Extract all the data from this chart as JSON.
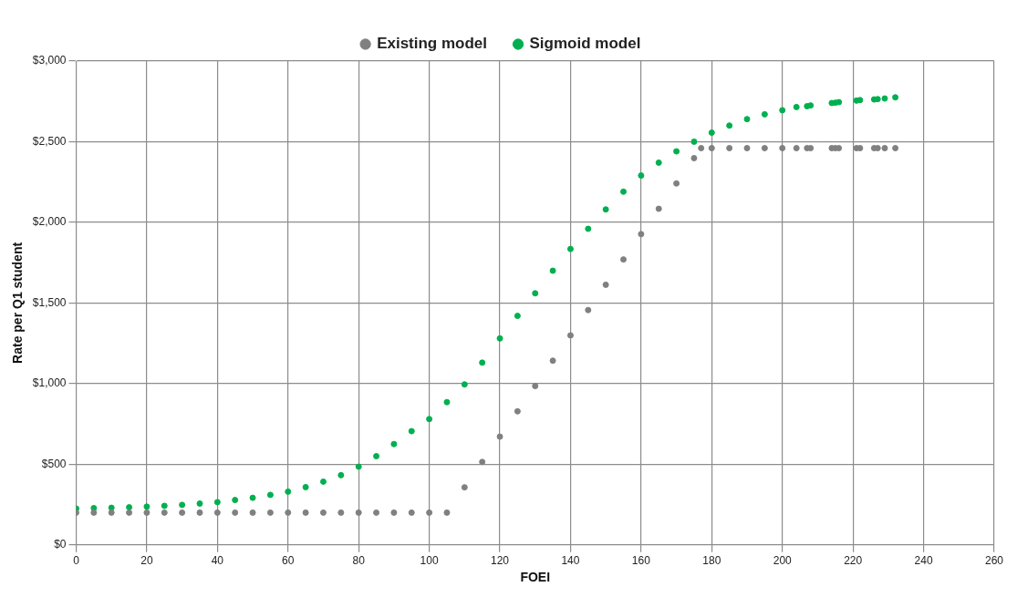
{
  "chart_data": {
    "type": "scatter",
    "xlabel": "FOEI",
    "ylabel": "Rate per Q1 student",
    "legend": "top",
    "grid": true,
    "marker": "circle",
    "xlim": [
      0,
      260
    ],
    "xticks": [
      0,
      20,
      40,
      60,
      80,
      100,
      120,
      140,
      160,
      180,
      200,
      220,
      240,
      260
    ],
    "ylim": [
      0,
      3000
    ],
    "yticks": [
      {
        "value": 0,
        "label": "$0"
      },
      {
        "value": 500,
        "label": "$500"
      },
      {
        "value": 1000,
        "label": "$1,000"
      },
      {
        "value": 1500,
        "label": "$1,500"
      },
      {
        "value": 2000,
        "label": "$2,000"
      },
      {
        "value": 2500,
        "label": "$2,500"
      },
      {
        "value": 3000,
        "label": "$3,000"
      }
    ],
    "series": [
      {
        "name": "Existing model",
        "color": "#808080",
        "x": [
          0,
          5,
          10,
          15,
          20,
          25,
          30,
          35,
          40,
          45,
          50,
          55,
          60,
          65,
          70,
          75,
          80,
          85,
          90,
          95,
          100,
          105,
          110,
          115,
          120,
          125,
          130,
          135,
          140,
          145,
          150,
          155,
          160,
          165,
          170,
          175,
          177,
          180,
          185,
          190,
          195,
          200,
          204,
          207,
          208,
          214,
          215,
          216,
          221,
          222,
          226,
          227,
          229,
          232
        ],
        "values": [
          200,
          200,
          200,
          200,
          200,
          200,
          200,
          200,
          200,
          200,
          200,
          200,
          200,
          200,
          200,
          200,
          200,
          200,
          200,
          200,
          200,
          200,
          357,
          514,
          671,
          828,
          985,
          1142,
          1299,
          1456,
          1613,
          1770,
          1927,
          2084,
          2241,
          2398,
          2460,
          2460,
          2460,
          2460,
          2460,
          2460,
          2460,
          2460,
          2460,
          2460,
          2460,
          2460,
          2460,
          2460,
          2460,
          2460,
          2460,
          2460
        ]
      },
      {
        "name": "Sigmoid model",
        "color": "#00b050",
        "x": [
          0,
          5,
          10,
          15,
          20,
          25,
          30,
          35,
          40,
          45,
          50,
          55,
          60,
          65,
          70,
          75,
          80,
          85,
          90,
          95,
          100,
          105,
          110,
          115,
          120,
          125,
          130,
          135,
          140,
          145,
          150,
          155,
          160,
          165,
          170,
          175,
          180,
          185,
          190,
          195,
          200,
          204,
          207,
          208,
          214,
          215,
          216,
          221,
          222,
          226,
          227,
          229,
          232
        ],
        "values": [
          225,
          228,
          230,
          233,
          237,
          242,
          248,
          256,
          265,
          278,
          292,
          310,
          330,
          358,
          392,
          432,
          485,
          550,
          625,
          705,
          780,
          885,
          995,
          1130,
          1280,
          1420,
          1560,
          1700,
          1835,
          1960,
          2080,
          2190,
          2290,
          2370,
          2440,
          2500,
          2556,
          2600,
          2640,
          2670,
          2695,
          2715,
          2720,
          2725,
          2740,
          2742,
          2745,
          2755,
          2758,
          2762,
          2764,
          2768,
          2775
        ]
      }
    ]
  }
}
